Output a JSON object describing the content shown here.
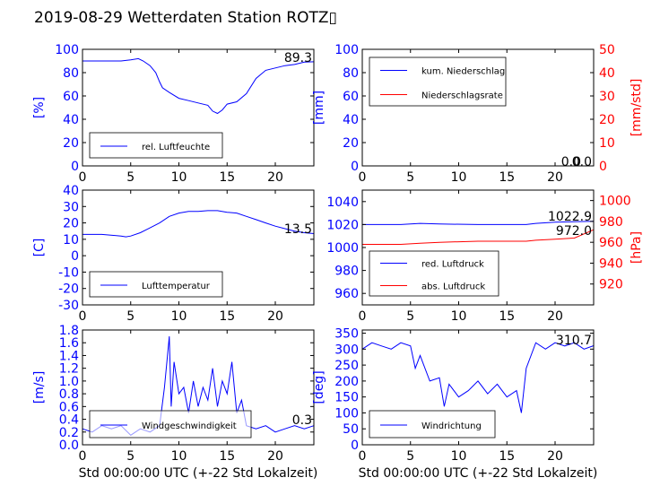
{
  "title": "2019-08-29 Wetterdaten Station ROTZ▯",
  "colors": {
    "primary": "#0000ff",
    "secondary": "#ff0000",
    "axis": "#000000"
  },
  "chart_data": [
    {
      "id": "humidity",
      "type": "line",
      "xlim": [
        0,
        24
      ],
      "ylim": [
        0,
        100
      ],
      "xticks": [
        0,
        5,
        10,
        15,
        20
      ],
      "yticks": [
        0,
        20,
        40,
        60,
        80,
        100
      ],
      "ylabel": "[%]",
      "xlabel": "",
      "legend": "bottom-left",
      "series": [
        {
          "name": "rel. Luftfeuchte",
          "color": "#0000ff",
          "x": [
            0,
            2,
            4,
            5,
            5.8,
            6.3,
            7,
            7.6,
            8,
            8.3,
            9,
            10,
            11,
            12,
            13,
            13.5,
            14,
            14.5,
            15,
            16,
            17,
            18,
            19,
            20,
            21,
            22,
            23,
            24
          ],
          "y": [
            90,
            90,
            90,
            91,
            92,
            90,
            86,
            80,
            72,
            67,
            63,
            58,
            56,
            54,
            52,
            47,
            45,
            48,
            53,
            55,
            62,
            75,
            82,
            84,
            86,
            87,
            89,
            89.3
          ]
        }
      ],
      "annotations": [
        "89.3"
      ]
    },
    {
      "id": "precip",
      "type": "line",
      "xlim": [
        0,
        24
      ],
      "ylim": [
        0,
        100
      ],
      "y2lim": [
        0,
        50
      ],
      "xticks": [
        0,
        5,
        10,
        15,
        20
      ],
      "yticks": [
        0,
        20,
        40,
        60,
        80,
        100
      ],
      "y2ticks": [
        0,
        10,
        20,
        30,
        40,
        50
      ],
      "ylabel": "[mm]",
      "y2label": "[mm/std]",
      "xlabel": "",
      "legend": "top-left",
      "series": [
        {
          "name": "kum. Niederschlag",
          "color": "#0000ff",
          "axis": "left",
          "x": [
            0,
            24
          ],
          "y": [
            0,
            0
          ]
        },
        {
          "name": "Niederschlagsrate",
          "color": "#ff0000",
          "axis": "right",
          "x": [
            0,
            24
          ],
          "y": [
            0,
            0
          ]
        }
      ],
      "annotations": [
        "0.0",
        "0.0"
      ]
    },
    {
      "id": "temperature",
      "type": "line",
      "xlim": [
        0,
        24
      ],
      "ylim": [
        -30,
        40
      ],
      "xticks": [
        0,
        5,
        10,
        15,
        20
      ],
      "yticks": [
        -30,
        -20,
        -10,
        0,
        10,
        20,
        30,
        40
      ],
      "ylabel": "[C]",
      "xlabel": "",
      "legend": "bottom-left",
      "series": [
        {
          "name": "Lufttemperatur",
          "color": "#0000ff",
          "x": [
            0,
            2,
            4,
            4.5,
            5,
            6,
            7,
            8,
            9,
            10,
            11,
            12,
            13,
            14,
            15,
            16,
            17,
            18,
            19,
            20,
            21,
            22,
            23,
            24
          ],
          "y": [
            13,
            13,
            12,
            11.5,
            12,
            14,
            17,
            20,
            24,
            26,
            27,
            27,
            27.5,
            27.5,
            26.5,
            26,
            24,
            22,
            20,
            18,
            16.5,
            15,
            14,
            13.5
          ]
        }
      ],
      "annotations": [
        "13.5"
      ]
    },
    {
      "id": "pressure",
      "type": "line",
      "xlim": [
        0,
        24
      ],
      "ylim": [
        950,
        1050
      ],
      "y2lim": [
        900,
        1010
      ],
      "xticks": [
        0,
        5,
        10,
        15,
        20
      ],
      "yticks": [
        960,
        980,
        1000,
        1020,
        1040
      ],
      "y2ticks": [
        920,
        940,
        960,
        980,
        1000
      ],
      "ylabel": "",
      "y2label": "[hPa]",
      "xlabel": "",
      "legend": "bottom-left",
      "series": [
        {
          "name": "red. Luftdruck",
          "color": "#0000ff",
          "axis": "left",
          "x": [
            0,
            4,
            6,
            8,
            12,
            16,
            17,
            18,
            20,
            22,
            24
          ],
          "y": [
            1020,
            1020,
            1021,
            1020.5,
            1020,
            1020,
            1020,
            1021,
            1022,
            1022.5,
            1022.9
          ]
        },
        {
          "name": "abs. Luftdruck",
          "color": "#ff0000",
          "axis": "right",
          "x": [
            0,
            4,
            6,
            8,
            12,
            16,
            17,
            18,
            20,
            22,
            24
          ],
          "y": [
            958,
            958,
            959,
            960,
            961,
            961,
            961,
            962,
            963,
            964,
            972.0
          ]
        }
      ],
      "annotations": [
        "1022.9",
        "972.0"
      ]
    },
    {
      "id": "wind",
      "type": "line",
      "xlim": [
        0,
        24
      ],
      "ylim": [
        0,
        1.8
      ],
      "xticks": [
        0,
        5,
        10,
        15,
        20
      ],
      "yticks": [
        0.0,
        0.2,
        0.4,
        0.6,
        0.8,
        1.0,
        1.2,
        1.4,
        1.6,
        1.8
      ],
      "ylabel": "[m/s]",
      "xlabel": "Std 00:00:00 UTC (+-22 Std Lokalzeit)",
      "legend": "bottom-left",
      "series": [
        {
          "name": "Windgeschwindigkeit",
          "color": "#0000ff",
          "x": [
            0,
            1,
            2,
            3,
            4,
            5,
            6,
            7,
            8,
            8.5,
            9,
            9.2,
            9.5,
            10,
            10.5,
            11,
            11.5,
            12,
            12.5,
            13,
            13.5,
            14,
            14.5,
            15,
            15.5,
            16,
            16.5,
            17,
            18,
            19,
            20,
            21,
            22,
            23,
            24
          ],
          "y": [
            0.25,
            0.2,
            0.3,
            0.25,
            0.3,
            0.15,
            0.25,
            0.2,
            0.3,
            0.9,
            1.7,
            0.6,
            1.3,
            0.8,
            0.9,
            0.5,
            1.0,
            0.6,
            0.9,
            0.7,
            1.2,
            0.6,
            1.0,
            0.8,
            1.3,
            0.5,
            0.7,
            0.3,
            0.25,
            0.3,
            0.2,
            0.25,
            0.3,
            0.25,
            0.3
          ]
        }
      ],
      "annotations": [
        "0.3"
      ]
    },
    {
      "id": "winddir",
      "type": "line",
      "xlim": [
        0,
        24
      ],
      "ylim": [
        0,
        360
      ],
      "xticks": [
        0,
        5,
        10,
        15,
        20
      ],
      "yticks": [
        0,
        50,
        100,
        150,
        200,
        250,
        300,
        350
      ],
      "ylabel": "[deg]",
      "xlabel": "Std 00:00:00 UTC (+-22 Std Lokalzeit)",
      "legend": "bottom-left",
      "series": [
        {
          "name": "Windrichtung",
          "color": "#0000ff",
          "x": [
            0,
            1,
            2,
            3,
            4,
            5,
            5.5,
            6,
            7,
            8,
            8.5,
            9,
            10,
            11,
            12,
            13,
            14,
            15,
            16,
            16.5,
            17,
            18,
            19,
            20,
            21,
            22,
            23,
            24
          ],
          "y": [
            300,
            320,
            310,
            300,
            320,
            310,
            240,
            280,
            200,
            210,
            120,
            190,
            150,
            170,
            200,
            160,
            190,
            150,
            170,
            100,
            240,
            320,
            300,
            320,
            310,
            320,
            300,
            310.7
          ]
        }
      ],
      "annotations": [
        "310.7"
      ]
    }
  ]
}
